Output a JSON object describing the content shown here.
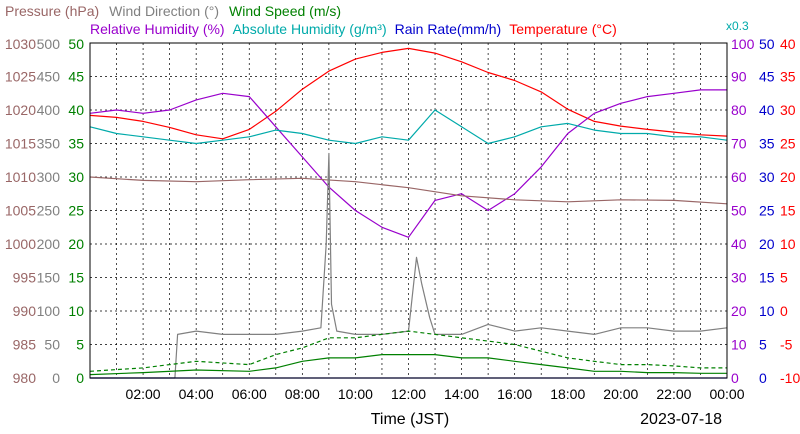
{
  "chart_data": {
    "type": "line",
    "legend": {
      "row1": [
        {
          "text": "Pressure (hPa)",
          "color": "#996666"
        },
        {
          "text": "Wind Direction (°)",
          "color": "#808080"
        },
        {
          "text": "Wind Speed (m/s)",
          "color": "#008000"
        }
      ],
      "row2": [
        {
          "text": "Relative Humidity (%)",
          "color": "#9900cc"
        },
        {
          "text": "Absolute Humidity (g/m³)",
          "color": "#00aaaa"
        },
        {
          "text": "Rain Rate(mm/h)",
          "color": "#0000cc"
        },
        {
          "text": "Temperature (°C)",
          "color": "#ff0000"
        }
      ],
      "scale_note": {
        "text": "x0.3",
        "color": "#00aaaa"
      }
    },
    "xlabel": "Time (JST)",
    "date": "2023-07-18",
    "x_ticks": [
      "02:00",
      "04:00",
      "06:00",
      "08:00",
      "10:00",
      "12:00",
      "14:00",
      "16:00",
      "18:00",
      "20:00",
      "22:00",
      "00:00"
    ],
    "x_range": [
      0,
      24
    ],
    "grid": true,
    "axes": {
      "pressure": {
        "color": "#996666",
        "ticks": [
          "980",
          "985",
          "990",
          "995",
          "1000",
          "1005",
          "1010",
          "1015",
          "1020",
          "1025",
          "1030"
        ]
      },
      "wind_direction": {
        "color": "#808080",
        "ticks": [
          "0",
          "50",
          "100",
          "150",
          "200",
          "250",
          "300",
          "350",
          "400",
          "450",
          "500"
        ]
      },
      "wind_speed": {
        "color": "#008000",
        "ticks": [
          "0",
          "5",
          "10",
          "15",
          "20",
          "25",
          "30",
          "35",
          "40",
          "45",
          "50"
        ]
      },
      "humidity": {
        "color": "#9900cc",
        "ticks": [
          "0",
          "10",
          "20",
          "30",
          "40",
          "50",
          "60",
          "70",
          "80",
          "90",
          "100"
        ]
      },
      "rain_rate": {
        "color": "#0000cc",
        "ticks": [
          "0",
          "5",
          "10",
          "15",
          "20",
          "25",
          "30",
          "35",
          "40",
          "45",
          "50"
        ]
      },
      "temperature": {
        "color": "#ff0000",
        "ticks": [
          "-10",
          "-5",
          "0",
          "5",
          "10",
          "15",
          "20",
          "25",
          "30",
          "35",
          "40"
        ]
      }
    },
    "series": [
      {
        "key": "temperature",
        "color": "#ff0000",
        "axis": "temperature",
        "range": [
          -10,
          40
        ],
        "x": [
          0,
          1,
          2,
          3,
          4,
          5,
          6,
          7,
          8,
          9,
          10,
          11,
          12,
          13,
          14,
          15,
          16,
          17,
          18,
          19,
          20,
          21,
          22,
          23,
          24
        ],
        "values": [
          29.2,
          28.9,
          28.3,
          27.4,
          26.3,
          25.7,
          27.1,
          29.8,
          33.1,
          35.8,
          37.6,
          38.6,
          39.2,
          38.5,
          37.2,
          35.6,
          34.4,
          32.7,
          30.1,
          28.3,
          27.6,
          27.1,
          26.7,
          26.3,
          26.1
        ]
      },
      {
        "key": "relative_humidity",
        "color": "#9900cc",
        "axis": "humidity",
        "range": [
          0,
          100
        ],
        "x": [
          0,
          1,
          2,
          3,
          4,
          5,
          6,
          7,
          8,
          9,
          10,
          11,
          12,
          13,
          14,
          15,
          16,
          17,
          18,
          19,
          20,
          21,
          22,
          23,
          24
        ],
        "values": [
          79,
          80,
          79,
          80,
          83,
          85,
          84,
          75,
          66,
          57,
          50,
          45,
          42,
          53,
          55,
          50,
          55,
          63,
          73,
          79,
          82,
          84,
          85,
          86,
          86
        ]
      },
      {
        "key": "absolute_humidity",
        "color": "#00aaaa",
        "axis": "humidity",
        "range": [
          0,
          100
        ],
        "x": [
          0,
          1,
          2,
          3,
          4,
          5,
          6,
          7,
          8,
          9,
          10,
          11,
          12,
          13,
          14,
          15,
          16,
          17,
          18,
          19,
          20,
          21,
          22,
          23,
          24
        ],
        "values": [
          75,
          73,
          72,
          71,
          70,
          71,
          72,
          74,
          73,
          71,
          70,
          72,
          71,
          80,
          75,
          70,
          72,
          75,
          76,
          74,
          73,
          73,
          72,
          72,
          71
        ]
      },
      {
        "key": "pressure",
        "color": "#996666",
        "axis": "pressure",
        "range": [
          980,
          1030
        ],
        "x": [
          0,
          2,
          4,
          6,
          8,
          10,
          12,
          14,
          16,
          18,
          20,
          22,
          24
        ],
        "values": [
          1010.0,
          1009.5,
          1009.3,
          1009.6,
          1009.8,
          1009.3,
          1008.4,
          1007.2,
          1006.6,
          1006.3,
          1006.6,
          1006.5,
          1006.0
        ]
      },
      {
        "key": "wind_direction",
        "color": "#808080",
        "axis": "wind_direction",
        "range": [
          0,
          500
        ],
        "x": [
          0,
          3.2,
          3.3,
          4,
          5,
          6,
          7,
          8,
          8.7,
          8.9,
          9,
          9.1,
          9.3,
          10,
          11,
          12,
          12.3,
          12.5,
          12.8,
          13,
          14,
          15,
          16,
          17,
          18,
          19,
          20,
          21,
          22,
          23,
          24
        ],
        "values": [
          0,
          0,
          65,
          70,
          65,
          65,
          65,
          70,
          75,
          200,
          335,
          110,
          70,
          65,
          65,
          70,
          180,
          140,
          90,
          65,
          65,
          80,
          70,
          75,
          70,
          65,
          75,
          75,
          70,
          70,
          75
        ]
      },
      {
        "key": "wind_speed",
        "color": "#008000",
        "axis": "wind_speed",
        "range": [
          0,
          50
        ],
        "x": [
          0,
          2,
          4,
          6,
          7,
          8,
          9,
          10,
          11,
          12,
          13,
          14,
          15,
          16,
          17,
          18,
          19,
          20,
          21,
          22,
          23,
          24
        ],
        "values": [
          0.5,
          0.8,
          1.2,
          1.0,
          1.5,
          2.5,
          3.0,
          3.0,
          3.5,
          3.5,
          3.5,
          3.0,
          3.0,
          2.5,
          2.0,
          1.5,
          1.0,
          1.0,
          0.8,
          0.8,
          0.7,
          0.7
        ]
      },
      {
        "key": "wind_gust",
        "color": "#008000",
        "dashed": true,
        "axis": "wind_speed",
        "range": [
          0,
          50
        ],
        "x": [
          0,
          2,
          4,
          6,
          7,
          8,
          9,
          10,
          11,
          12,
          13,
          14,
          15,
          16,
          17,
          18,
          19,
          20,
          21,
          22,
          23,
          24
        ],
        "values": [
          1,
          1.5,
          2.5,
          2,
          3.5,
          4.5,
          6,
          6,
          6.5,
          7,
          6.5,
          6,
          5.5,
          5,
          4,
          3,
          2.5,
          2,
          2,
          1.8,
          1.5,
          1.5
        ]
      },
      {
        "key": "rain_rate",
        "color": "#0000cc",
        "axis": "rain_rate",
        "range": [
          0,
          50
        ],
        "x": [
          0,
          24
        ],
        "values": [
          0,
          0
        ]
      }
    ]
  }
}
